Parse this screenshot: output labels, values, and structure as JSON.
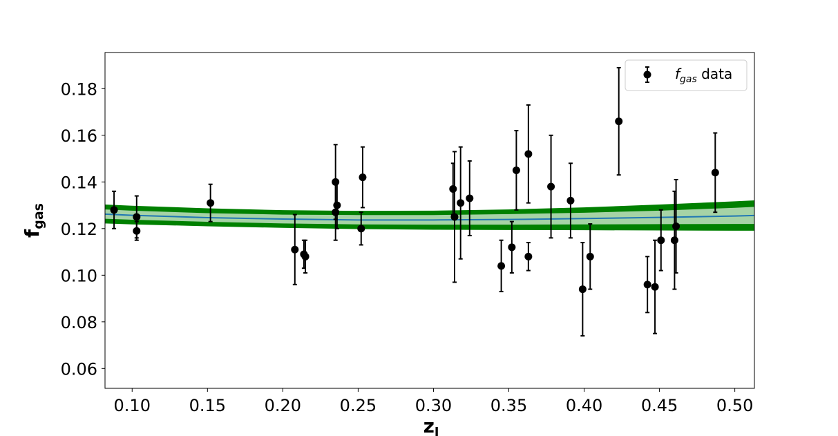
{
  "chart_data": {
    "type": "scatter",
    "title": "",
    "xlabel": {
      "main": "z",
      "sub": "l"
    },
    "ylabel": {
      "main": "f",
      "sub": "gas"
    },
    "xlim": [
      0.082,
      0.513
    ],
    "ylim": [
      0.0515,
      0.1955
    ],
    "xticks": [
      0.1,
      0.15,
      0.2,
      0.25,
      0.3,
      0.35,
      0.4,
      0.45,
      0.5
    ],
    "xtick_labels": [
      "0.10",
      "0.15",
      "0.20",
      "0.25",
      "0.30",
      "0.35",
      "0.40",
      "0.45",
      "0.50"
    ],
    "yticks": [
      0.06,
      0.08,
      0.1,
      0.12,
      0.14,
      0.16,
      0.18
    ],
    "ytick_labels": [
      "0.06",
      "0.08",
      "0.10",
      "0.12",
      "0.14",
      "0.16",
      "0.18"
    ],
    "grid": false,
    "legend": {
      "position": "top-right",
      "entries": [
        {
          "label_math": "f",
          "label_sub": "gas",
          "label_rest": " data",
          "marker": "errorbar-point",
          "color": "#000000"
        }
      ]
    },
    "series": [
      {
        "name": "f_gas data",
        "kind": "errorbar",
        "color": "#000000",
        "points": [
          {
            "x": 0.088,
            "y": 0.128,
            "lo": 0.12,
            "hi": 0.136
          },
          {
            "x": 0.103,
            "y": 0.125,
            "lo": 0.116,
            "hi": 0.134
          },
          {
            "x": 0.103,
            "y": 0.119,
            "lo": 0.115,
            "hi": 0.123
          },
          {
            "x": 0.152,
            "y": 0.131,
            "lo": 0.123,
            "hi": 0.139
          },
          {
            "x": 0.208,
            "y": 0.111,
            "lo": 0.096,
            "hi": 0.126
          },
          {
            "x": 0.214,
            "y": 0.109,
            "lo": 0.103,
            "hi": 0.115
          },
          {
            "x": 0.215,
            "y": 0.108,
            "lo": 0.101,
            "hi": 0.115
          },
          {
            "x": 0.235,
            "y": 0.14,
            "lo": 0.124,
            "hi": 0.156
          },
          {
            "x": 0.235,
            "y": 0.127,
            "lo": 0.115,
            "hi": 0.139
          },
          {
            "x": 0.236,
            "y": 0.13,
            "lo": 0.12,
            "hi": 0.14
          },
          {
            "x": 0.252,
            "y": 0.12,
            "lo": 0.113,
            "hi": 0.127
          },
          {
            "x": 0.253,
            "y": 0.142,
            "lo": 0.129,
            "hi": 0.155
          },
          {
            "x": 0.313,
            "y": 0.137,
            "lo": 0.126,
            "hi": 0.148
          },
          {
            "x": 0.314,
            "y": 0.125,
            "lo": 0.097,
            "hi": 0.153
          },
          {
            "x": 0.318,
            "y": 0.131,
            "lo": 0.107,
            "hi": 0.155
          },
          {
            "x": 0.324,
            "y": 0.133,
            "lo": 0.117,
            "hi": 0.149
          },
          {
            "x": 0.345,
            "y": 0.104,
            "lo": 0.093,
            "hi": 0.115
          },
          {
            "x": 0.352,
            "y": 0.112,
            "lo": 0.101,
            "hi": 0.123
          },
          {
            "x": 0.355,
            "y": 0.145,
            "lo": 0.128,
            "hi": 0.162
          },
          {
            "x": 0.363,
            "y": 0.152,
            "lo": 0.131,
            "hi": 0.173
          },
          {
            "x": 0.363,
            "y": 0.108,
            "lo": 0.102,
            "hi": 0.114
          },
          {
            "x": 0.378,
            "y": 0.138,
            "lo": 0.116,
            "hi": 0.16
          },
          {
            "x": 0.391,
            "y": 0.132,
            "lo": 0.116,
            "hi": 0.148
          },
          {
            "x": 0.399,
            "y": 0.094,
            "lo": 0.074,
            "hi": 0.114
          },
          {
            "x": 0.404,
            "y": 0.108,
            "lo": 0.094,
            "hi": 0.122
          },
          {
            "x": 0.423,
            "y": 0.166,
            "lo": 0.143,
            "hi": 0.189
          },
          {
            "x": 0.442,
            "y": 0.096,
            "lo": 0.084,
            "hi": 0.108
          },
          {
            "x": 0.447,
            "y": 0.095,
            "lo": 0.075,
            "hi": 0.115
          },
          {
            "x": 0.451,
            "y": 0.115,
            "lo": 0.102,
            "hi": 0.128
          },
          {
            "x": 0.46,
            "y": 0.115,
            "lo": 0.094,
            "hi": 0.136
          },
          {
            "x": 0.461,
            "y": 0.121,
            "lo": 0.101,
            "hi": 0.141
          },
          {
            "x": 0.487,
            "y": 0.144,
            "lo": 0.127,
            "hi": 0.161
          }
        ]
      },
      {
        "name": "",
        "kind": "fit-band",
        "line_color": "#1f77b4",
        "inner_band_color": "#a6d3a6",
        "outer_band_color": "#008000",
        "x": [
          0.082,
          0.1,
          0.15,
          0.2,
          0.25,
          0.3,
          0.35,
          0.4,
          0.45,
          0.5,
          0.513
        ],
        "mid": [
          0.1262,
          0.1257,
          0.1247,
          0.1241,
          0.1237,
          0.1237,
          0.1239,
          0.1243,
          0.1248,
          0.1254,
          0.1256
        ],
        "inner_lo": [
          0.1242,
          0.1238,
          0.1229,
          0.1222,
          0.1218,
          0.1217,
          0.1217,
          0.1218,
          0.1219,
          0.122,
          0.122
        ],
        "inner_hi": [
          0.1282,
          0.1277,
          0.1266,
          0.126,
          0.1258,
          0.1258,
          0.1262,
          0.1268,
          0.1277,
          0.1289,
          0.1293
        ],
        "outer_lo": [
          0.1222,
          0.1218,
          0.121,
          0.1203,
          0.1198,
          0.1195,
          0.1194,
          0.1193,
          0.1192,
          0.1191,
          0.1191
        ],
        "outer_hi": [
          0.1303,
          0.1298,
          0.1287,
          0.1279,
          0.1276,
          0.1277,
          0.1282,
          0.1291,
          0.1303,
          0.1317,
          0.1321
        ]
      }
    ]
  }
}
